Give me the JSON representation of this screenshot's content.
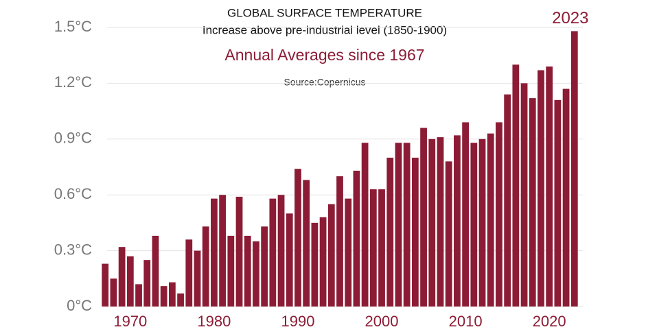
{
  "chart_data": {
    "type": "bar",
    "title": "GLOBAL SURFACE TEMPERATURE",
    "subtitle": "Increase above pre-industrial level (1850-1900)",
    "heading": "Annual Averages since 1967",
    "source": "Source:Copernicus",
    "annotation": "2023",
    "color": "#8c1c35",
    "grid": true,
    "x": [
      1967,
      1968,
      1969,
      1970,
      1971,
      1972,
      1973,
      1974,
      1975,
      1976,
      1977,
      1978,
      1979,
      1980,
      1981,
      1982,
      1983,
      1984,
      1985,
      1986,
      1987,
      1988,
      1989,
      1990,
      1991,
      1992,
      1993,
      1994,
      1995,
      1996,
      1997,
      1998,
      1999,
      2000,
      2001,
      2002,
      2003,
      2004,
      2005,
      2006,
      2007,
      2008,
      2009,
      2010,
      2011,
      2012,
      2013,
      2014,
      2015,
      2016,
      2017,
      2018,
      2019,
      2020,
      2021,
      2022,
      2023
    ],
    "values": [
      0.23,
      0.15,
      0.32,
      0.27,
      0.12,
      0.25,
      0.38,
      0.11,
      0.13,
      0.07,
      0.36,
      0.3,
      0.43,
      0.58,
      0.6,
      0.38,
      0.59,
      0.38,
      0.35,
      0.43,
      0.58,
      0.6,
      0.5,
      0.74,
      0.68,
      0.45,
      0.48,
      0.55,
      0.7,
      0.58,
      0.73,
      0.88,
      0.63,
      0.63,
      0.8,
      0.88,
      0.88,
      0.8,
      0.96,
      0.9,
      0.91,
      0.78,
      0.92,
      0.99,
      0.88,
      0.9,
      0.93,
      0.99,
      1.14,
      1.3,
      1.2,
      1.12,
      1.27,
      1.29,
      1.11,
      1.17,
      1.48
    ],
    "xlim": [
      1966,
      2024
    ],
    "xticks": [
      1970,
      1980,
      1990,
      2000,
      2010,
      2020
    ],
    "ylim": [
      0,
      1.5
    ],
    "yticks": [
      {
        "value": 0,
        "label": "0°C"
      },
      {
        "value": 0.3,
        "label": "0.3°C"
      },
      {
        "value": 0.6,
        "label": "0.6°C"
      },
      {
        "value": 0.9,
        "label": "0.9°C"
      },
      {
        "value": 1.2,
        "label": "1.2°C"
      },
      {
        "value": 1.5,
        "label": "1.5°C"
      }
    ]
  }
}
